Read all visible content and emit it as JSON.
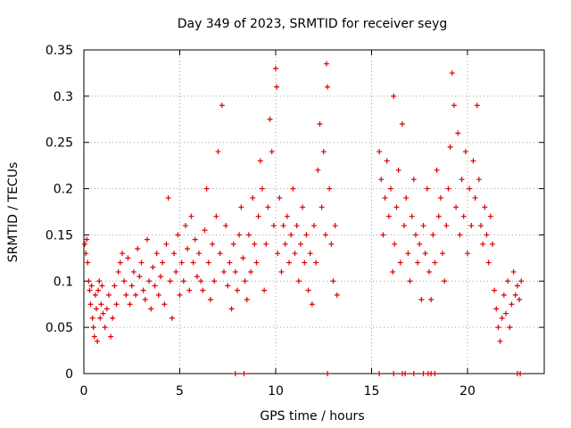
{
  "chart_data": {
    "type": "scatter",
    "title": "Day 349 of 2023, SRMTID for receiver seyg",
    "xlabel": "GPS time / hours",
    "ylabel": "SRMTID / TECUs",
    "xlim": [
      0,
      24
    ],
    "ylim": [
      0,
      0.35
    ],
    "xticks": [
      0,
      5,
      10,
      15,
      20
    ],
    "xtick_labels": [
      "0",
      "5",
      "10",
      "15",
      "20"
    ],
    "yticks": [
      0,
      0.05,
      0.1,
      0.15,
      0.2,
      0.25,
      0.3,
      0.35
    ],
    "ytick_labels": [
      "0",
      "0.05",
      "0.1",
      "0.15",
      "0.2",
      "0.25",
      "0.3",
      "0.35"
    ],
    "grid": true,
    "marker": "+",
    "color": "#dd0000",
    "series": [
      {
        "name": "SRMTID",
        "points": [
          [
            0.05,
            0.14
          ],
          [
            0.1,
            0.13
          ],
          [
            0.15,
            0.145
          ],
          [
            0.2,
            0.12
          ],
          [
            0.25,
            0.1
          ],
          [
            0.3,
            0.09
          ],
          [
            0.35,
            0.075
          ],
          [
            0.4,
            0.095
          ],
          [
            0.45,
            0.06
          ],
          [
            0.5,
            0.05
          ],
          [
            0.55,
            0.04
          ],
          [
            0.6,
            0.085
          ],
          [
            0.65,
            0.07
          ],
          [
            0.7,
            0.035
          ],
          [
            0.75,
            0.09
          ],
          [
            0.8,
            0.1
          ],
          [
            0.85,
            0.06
          ],
          [
            0.9,
            0.075
          ],
          [
            0.95,
            0.095
          ],
          [
            1.0,
            0.065
          ],
          [
            1.1,
            0.05
          ],
          [
            1.2,
            0.07
          ],
          [
            1.3,
            0.085
          ],
          [
            1.4,
            0.04
          ],
          [
            1.5,
            0.06
          ],
          [
            1.6,
            0.095
          ],
          [
            1.7,
            0.075
          ],
          [
            1.8,
            0.11
          ],
          [
            1.9,
            0.12
          ],
          [
            2.0,
            0.13
          ],
          [
            2.1,
            0.1
          ],
          [
            2.2,
            0.085
          ],
          [
            2.3,
            0.125
          ],
          [
            2.4,
            0.075
          ],
          [
            2.5,
            0.095
          ],
          [
            2.6,
            0.11
          ],
          [
            2.7,
            0.085
          ],
          [
            2.8,
            0.135
          ],
          [
            2.9,
            0.105
          ],
          [
            3.0,
            0.12
          ],
          [
            3.1,
            0.09
          ],
          [
            3.2,
            0.08
          ],
          [
            3.3,
            0.145
          ],
          [
            3.4,
            0.1
          ],
          [
            3.5,
            0.07
          ],
          [
            3.6,
            0.115
          ],
          [
            3.7,
            0.095
          ],
          [
            3.8,
            0.13
          ],
          [
            3.9,
            0.085
          ],
          [
            4.0,
            0.105
          ],
          [
            4.1,
            0.12
          ],
          [
            4.2,
            0.075
          ],
          [
            4.3,
            0.14
          ],
          [
            4.4,
            0.19
          ],
          [
            4.5,
            0.1
          ],
          [
            4.6,
            0.06
          ],
          [
            4.7,
            0.13
          ],
          [
            4.8,
            0.11
          ],
          [
            4.9,
            0.15
          ],
          [
            5.0,
            0.085
          ],
          [
            5.1,
            0.12
          ],
          [
            5.2,
            0.1
          ],
          [
            5.3,
            0.16
          ],
          [
            5.4,
            0.135
          ],
          [
            5.5,
            0.09
          ],
          [
            5.6,
            0.17
          ],
          [
            5.7,
            0.12
          ],
          [
            5.8,
            0.145
          ],
          [
            5.9,
            0.105
          ],
          [
            6.0,
            0.13
          ],
          [
            6.1,
            0.1
          ],
          [
            6.2,
            0.09
          ],
          [
            6.3,
            0.155
          ],
          [
            6.4,
            0.2
          ],
          [
            6.5,
            0.12
          ],
          [
            6.6,
            0.08
          ],
          [
            6.7,
            0.14
          ],
          [
            6.8,
            0.1
          ],
          [
            6.9,
            0.17
          ],
          [
            7.0,
            0.24
          ],
          [
            7.1,
            0.13
          ],
          [
            7.2,
            0.29
          ],
          [
            7.3,
            0.11
          ],
          [
            7.4,
            0.16
          ],
          [
            7.5,
            0.095
          ],
          [
            7.6,
            0.12
          ],
          [
            7.7,
            0.07
          ],
          [
            7.8,
            0.14
          ],
          [
            7.9,
            0.11
          ],
          [
            8.0,
            0.09
          ],
          [
            8.1,
            0.15
          ],
          [
            8.2,
            0.18
          ],
          [
            8.3,
            0.125
          ],
          [
            8.4,
            0.1
          ],
          [
            8.5,
            0.08
          ],
          [
            8.6,
            0.15
          ],
          [
            8.7,
            0.11
          ],
          [
            8.8,
            0.19
          ],
          [
            8.9,
            0.14
          ],
          [
            9.0,
            0.12
          ],
          [
            9.1,
            0.17
          ],
          [
            9.2,
            0.23
          ],
          [
            9.3,
            0.2
          ],
          [
            9.4,
            0.09
          ],
          [
            9.5,
            0.14
          ],
          [
            9.6,
            0.18
          ],
          [
            9.7,
            0.275
          ],
          [
            9.8,
            0.24
          ],
          [
            9.9,
            0.16
          ],
          [
            10.0,
            0.33
          ],
          [
            10.05,
            0.31
          ],
          [
            10.1,
            0.13
          ],
          [
            10.2,
            0.19
          ],
          [
            10.3,
            0.11
          ],
          [
            10.4,
            0.16
          ],
          [
            10.5,
            0.14
          ],
          [
            10.6,
            0.17
          ],
          [
            10.7,
            0.12
          ],
          [
            10.8,
            0.15
          ],
          [
            10.9,
            0.2
          ],
          [
            11.0,
            0.13
          ],
          [
            11.1,
            0.16
          ],
          [
            11.2,
            0.1
          ],
          [
            11.3,
            0.14
          ],
          [
            11.4,
            0.18
          ],
          [
            11.5,
            0.12
          ],
          [
            11.6,
            0.15
          ],
          [
            11.7,
            0.09
          ],
          [
            11.8,
            0.13
          ],
          [
            11.9,
            0.075
          ],
          [
            12.0,
            0.16
          ],
          [
            12.1,
            0.12
          ],
          [
            12.2,
            0.22
          ],
          [
            12.3,
            0.27
          ],
          [
            12.4,
            0.18
          ],
          [
            12.5,
            0.24
          ],
          [
            12.6,
            0.15
          ],
          [
            12.65,
            0.335
          ],
          [
            12.7,
            0.31
          ],
          [
            12.8,
            0.2
          ],
          [
            12.9,
            0.14
          ],
          [
            13.0,
            0.1
          ],
          [
            13.1,
            0.16
          ],
          [
            13.2,
            0.085
          ],
          [
            15.4,
            0.24
          ],
          [
            15.5,
            0.21
          ],
          [
            15.6,
            0.15
          ],
          [
            15.7,
            0.19
          ],
          [
            15.8,
            0.23
          ],
          [
            15.9,
            0.17
          ],
          [
            16.0,
            0.2
          ],
          [
            16.1,
            0.11
          ],
          [
            16.15,
            0.3
          ],
          [
            16.2,
            0.14
          ],
          [
            16.3,
            0.18
          ],
          [
            16.4,
            0.22
          ],
          [
            16.5,
            0.12
          ],
          [
            16.6,
            0.27
          ],
          [
            16.7,
            0.16
          ],
          [
            16.8,
            0.19
          ],
          [
            16.9,
            0.13
          ],
          [
            17.0,
            0.1
          ],
          [
            17.1,
            0.17
          ],
          [
            17.2,
            0.21
          ],
          [
            17.3,
            0.15
          ],
          [
            17.4,
            0.12
          ],
          [
            17.5,
            0.14
          ],
          [
            17.6,
            0.08
          ],
          [
            17.7,
            0.16
          ],
          [
            17.8,
            0.13
          ],
          [
            17.9,
            0.2
          ],
          [
            18.0,
            0.11
          ],
          [
            18.1,
            0.08
          ],
          [
            18.2,
            0.15
          ],
          [
            18.3,
            0.12
          ],
          [
            18.4,
            0.22
          ],
          [
            18.5,
            0.17
          ],
          [
            18.6,
            0.19
          ],
          [
            18.7,
            0.13
          ],
          [
            18.8,
            0.1
          ],
          [
            18.9,
            0.16
          ],
          [
            19.0,
            0.2
          ],
          [
            19.1,
            0.245
          ],
          [
            19.2,
            0.325
          ],
          [
            19.3,
            0.29
          ],
          [
            19.4,
            0.18
          ],
          [
            19.5,
            0.26
          ],
          [
            19.6,
            0.15
          ],
          [
            19.7,
            0.21
          ],
          [
            19.8,
            0.17
          ],
          [
            19.9,
            0.24
          ],
          [
            20.0,
            0.13
          ],
          [
            20.1,
            0.2
          ],
          [
            20.2,
            0.16
          ],
          [
            20.3,
            0.23
          ],
          [
            20.4,
            0.19
          ],
          [
            20.5,
            0.29
          ],
          [
            20.6,
            0.21
          ],
          [
            20.7,
            0.16
          ],
          [
            20.8,
            0.14
          ],
          [
            20.9,
            0.18
          ],
          [
            21.0,
            0.15
          ],
          [
            21.1,
            0.12
          ],
          [
            21.2,
            0.17
          ],
          [
            21.3,
            0.14
          ],
          [
            21.4,
            0.09
          ],
          [
            21.5,
            0.07
          ],
          [
            21.6,
            0.05
          ],
          [
            21.7,
            0.035
          ],
          [
            21.8,
            0.06
          ],
          [
            21.9,
            0.085
          ],
          [
            22.0,
            0.065
          ],
          [
            22.1,
            0.1
          ],
          [
            22.2,
            0.05
          ],
          [
            22.3,
            0.075
          ],
          [
            22.4,
            0.11
          ],
          [
            22.5,
            0.085
          ],
          [
            22.6,
            0.095
          ],
          [
            22.7,
            0.08
          ],
          [
            22.8,
            0.1
          ],
          [
            7.9,
            0.0
          ],
          [
            8.35,
            0.0
          ],
          [
            12.7,
            0.0
          ],
          [
            15.4,
            0.0
          ],
          [
            16.15,
            0.0
          ],
          [
            16.6,
            0.0
          ],
          [
            16.75,
            0.0
          ],
          [
            17.2,
            0.0
          ],
          [
            17.7,
            0.0
          ],
          [
            17.95,
            0.0
          ],
          [
            18.1,
            0.0
          ],
          [
            18.3,
            0.0
          ],
          [
            22.6,
            0.0
          ],
          [
            22.75,
            0.0
          ]
        ]
      }
    ]
  }
}
